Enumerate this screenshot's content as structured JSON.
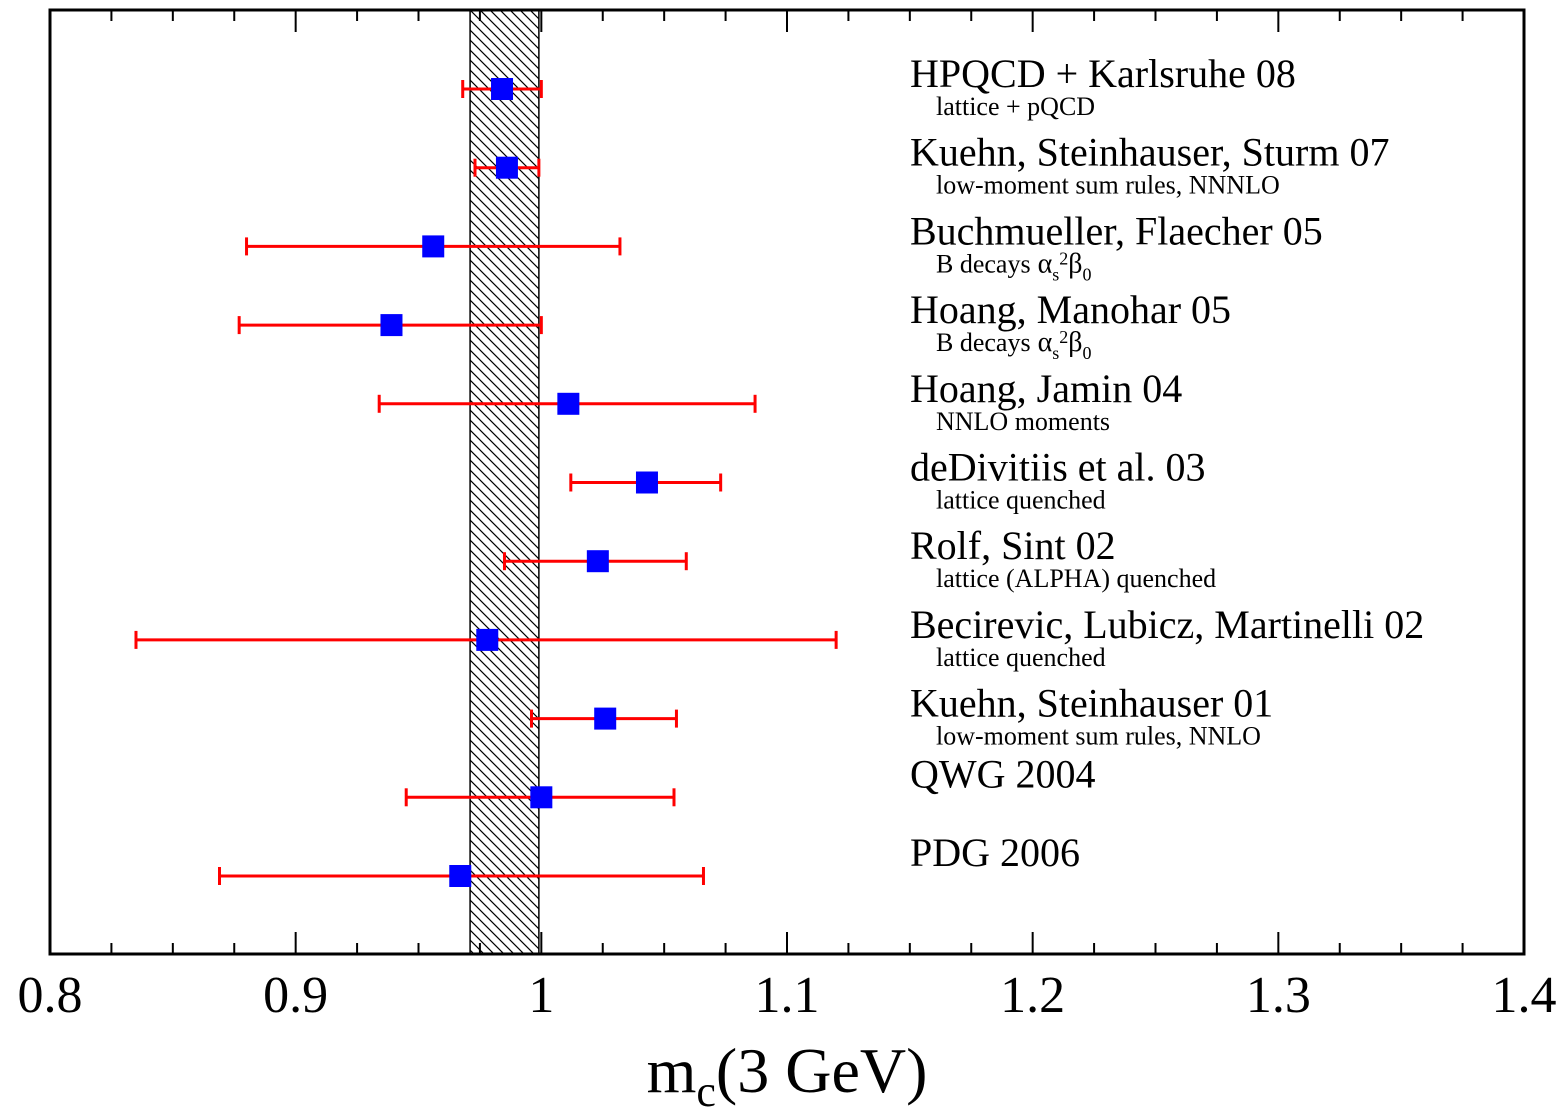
{
  "chart_data": {
    "type": "scatter",
    "xlabel_main": "m",
    "xlabel_sub": "c",
    "xlabel_rest": "(3 GeV)",
    "xlim": [
      0.8,
      1.4
    ],
    "ticks": [
      {
        "value": 0.8,
        "label": "0.8"
      },
      {
        "value": 0.9,
        "label": "0.9"
      },
      {
        "value": 1.0,
        "label": "1"
      },
      {
        "value": 1.1,
        "label": "1.1"
      },
      {
        "value": 1.2,
        "label": "1.2"
      },
      {
        "value": 1.3,
        "label": "1.3"
      },
      {
        "value": 1.4,
        "label": "1.4"
      }
    ],
    "band": {
      "low": 0.971,
      "high": 0.999
    },
    "colors": {
      "marker": "#0000ff",
      "errorbar": "#ff0000",
      "band_hatch": "#000000",
      "frame": "#000000"
    },
    "points": [
      {
        "name": "HPQCD + Karlsruhe 08",
        "subtitle": "lattice + pQCD",
        "value": 0.984,
        "low": 0.968,
        "high": 1.0
      },
      {
        "name": "Kuehn, Steinhauser, Sturm 07",
        "subtitle": "low-moment sum rules, NNNLO",
        "value": 0.986,
        "low": 0.973,
        "high": 0.999
      },
      {
        "name": "Buchmueller, Flaecher 05",
        "subtitle": "B decays",
        "physics": true,
        "value": 0.956,
        "low": 0.88,
        "high": 1.032
      },
      {
        "name": "Hoang, Manohar 05",
        "subtitle": "B decays",
        "physics": true,
        "value": 0.939,
        "low": 0.877,
        "high": 1.0
      },
      {
        "name": "Hoang, Jamin 04",
        "subtitle": "NNLO moments",
        "value": 1.011,
        "low": 0.934,
        "high": 1.087
      },
      {
        "name": "deDivitiis et al. 03",
        "subtitle": "lattice quenched",
        "value": 1.043,
        "low": 1.012,
        "high": 1.073
      },
      {
        "name": "Rolf, Sint 02",
        "subtitle": "lattice (ALPHA) quenched",
        "value": 1.023,
        "low": 0.985,
        "high": 1.059
      },
      {
        "name": "Becirevic, Lubicz, Martinelli 02",
        "subtitle": "lattice quenched",
        "value": 0.978,
        "low": 0.835,
        "high": 1.12
      },
      {
        "name": "Kuehn, Steinhauser 01",
        "subtitle": "low-moment sum rules, NNLO",
        "value": 1.026,
        "low": 0.996,
        "high": 1.055
      },
      {
        "name": "QWG 2004",
        "subtitle": "",
        "value": 1.0,
        "low": 0.945,
        "high": 1.054
      },
      {
        "name": "PDG 2006",
        "subtitle": "",
        "value": 0.967,
        "low": 0.869,
        "high": 1.066
      }
    ],
    "physics_symbols": {
      "alpha": "α",
      "s": "s",
      "two": "2",
      "beta": "β",
      "zero": "0"
    }
  }
}
